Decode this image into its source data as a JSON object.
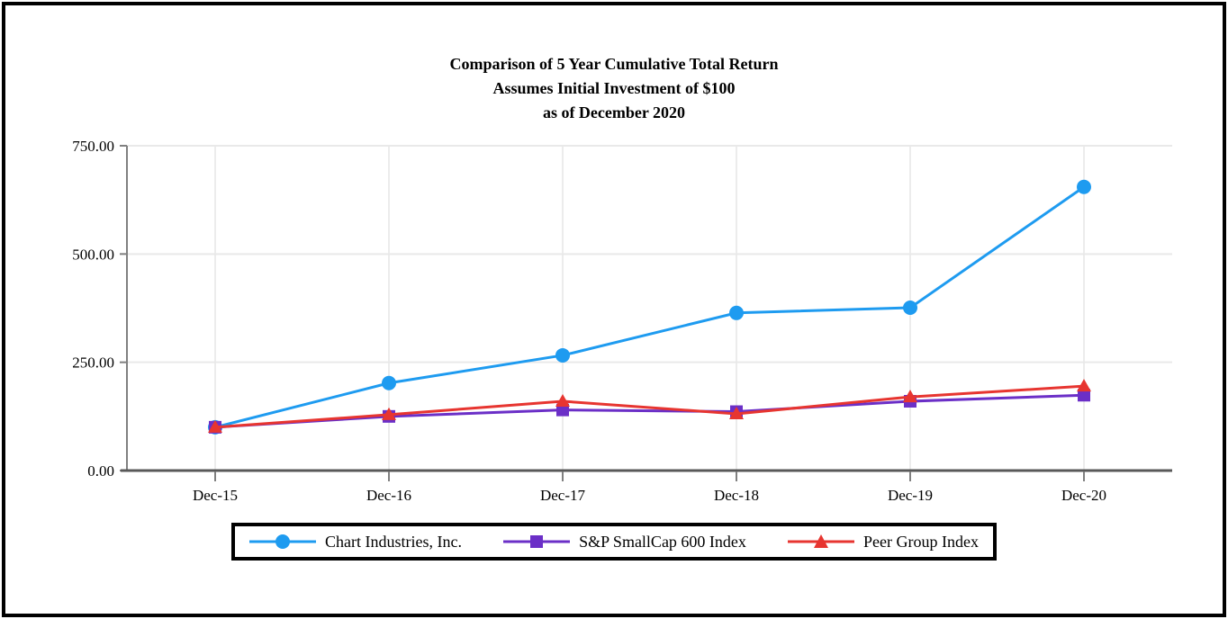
{
  "title": {
    "line1": "Comparison of 5 Year Cumulative Total Return",
    "line2": "Assumes Initial Investment of $100",
    "line3": "as of December 2020"
  },
  "chart_data": {
    "type": "line",
    "categories": [
      "Dec-15",
      "Dec-16",
      "Dec-17",
      "Dec-18",
      "Dec-19",
      "Dec-20"
    ],
    "series": [
      {
        "name": "Chart Industries, Inc.",
        "marker": "circle",
        "color": "#1E9BF0",
        "values": [
          100,
          202,
          266,
          364,
          376,
          655
        ]
      },
      {
        "name": "S&P SmallCap 600 Index",
        "marker": "square",
        "color": "#6B2FC7",
        "values": [
          100,
          125,
          140,
          136,
          160,
          174
        ]
      },
      {
        "name": "Peer Group Index",
        "marker": "triangle",
        "color": "#E73530",
        "values": [
          100,
          129,
          160,
          131,
          170,
          195
        ]
      }
    ],
    "xlabel": "",
    "ylabel": "",
    "ylim": [
      0,
      750
    ],
    "yticks": [
      0,
      250,
      500,
      750
    ],
    "ytick_decimals": 2,
    "grid": true,
    "legend_position": "bottom",
    "colors": {
      "h_gridline": "#E9E9E9",
      "v_gridline": "#ECECEC",
      "y_axis": "#808080",
      "x_axis": "#595959",
      "tick": "#808080"
    }
  }
}
